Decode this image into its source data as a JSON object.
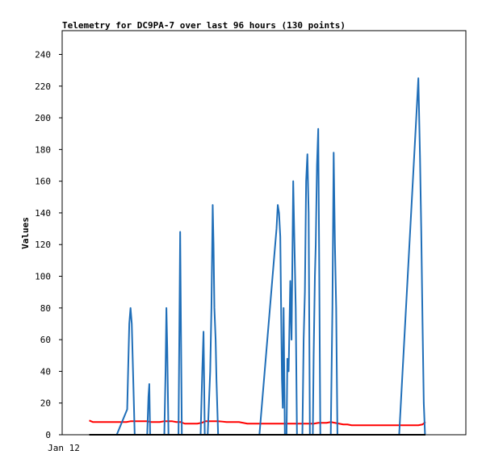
{
  "chart_data": {
    "type": "line",
    "title": "Telemetry for DC9PA-7 over last 96 hours (130 points)",
    "xlabel": "",
    "ylabel": "Values",
    "ylim": [
      0,
      255
    ],
    "yticks": [
      0,
      20,
      40,
      60,
      80,
      100,
      120,
      140,
      160,
      180,
      200,
      220,
      240
    ],
    "x_tick_labels": [
      {
        "label": "Jan 12",
        "x": 0
      }
    ],
    "xlim": [
      0,
      96
    ],
    "grid": false,
    "legend": "none",
    "series": [
      {
        "color": "#ff0000",
        "stroke_width": 2,
        "points": [
          [
            6.1,
            9
          ],
          [
            7,
            8
          ],
          [
            8,
            8
          ],
          [
            9,
            8
          ],
          [
            10,
            8
          ],
          [
            11,
            8
          ],
          [
            12,
            8
          ],
          [
            13,
            8
          ],
          [
            14,
            8
          ],
          [
            15,
            8
          ],
          [
            16,
            8.5
          ],
          [
            17,
            8.5
          ],
          [
            18,
            8.5
          ],
          [
            19,
            8.5
          ],
          [
            20,
            8.5
          ],
          [
            21,
            8
          ],
          [
            22,
            8
          ],
          [
            23,
            8
          ],
          [
            24,
            8.5
          ],
          [
            25,
            8.5
          ],
          [
            26,
            8.5
          ],
          [
            27,
            8
          ],
          [
            28,
            8
          ],
          [
            29,
            7
          ],
          [
            30,
            7
          ],
          [
            31,
            7
          ],
          [
            32,
            7
          ],
          [
            33,
            7.5
          ],
          [
            34,
            8.5
          ],
          [
            35,
            8.5
          ],
          [
            36,
            8.5
          ],
          [
            37,
            8.5
          ],
          [
            38,
            8.3
          ],
          [
            39,
            8
          ],
          [
            40,
            8
          ],
          [
            41,
            8
          ],
          [
            42,
            8
          ],
          [
            43,
            7.5
          ],
          [
            44,
            7
          ],
          [
            45,
            7
          ],
          [
            46,
            7
          ],
          [
            47,
            7
          ],
          [
            48,
            7
          ],
          [
            49,
            7
          ],
          [
            50,
            7
          ],
          [
            51,
            7
          ],
          [
            52,
            7
          ],
          [
            53,
            7
          ],
          [
            54,
            7
          ],
          [
            55,
            7
          ],
          [
            56,
            7
          ],
          [
            57,
            7
          ],
          [
            58,
            7
          ],
          [
            59,
            7
          ],
          [
            60,
            7
          ],
          [
            61,
            7.5
          ],
          [
            62,
            7.5
          ],
          [
            63,
            7.5
          ],
          [
            64,
            8
          ],
          [
            65,
            7.5
          ],
          [
            66,
            7
          ],
          [
            67,
            6.5
          ],
          [
            68,
            6.5
          ],
          [
            69,
            6
          ],
          [
            70,
            6
          ],
          [
            71,
            6
          ],
          [
            72,
            6
          ],
          [
            73,
            6
          ],
          [
            74,
            6
          ],
          [
            75,
            6
          ],
          [
            76,
            6
          ],
          [
            77,
            6
          ],
          [
            78,
            6
          ],
          [
            79,
            6
          ],
          [
            80,
            6
          ],
          [
            81,
            6
          ],
          [
            82,
            6
          ],
          [
            83,
            6
          ],
          [
            84,
            6
          ],
          [
            85,
            6
          ],
          [
            86,
            6.5
          ],
          [
            86.7,
            8
          ]
        ]
      },
      {
        "color": "#1f6eb8",
        "stroke_width": 2,
        "points": [
          [
            12.7,
            0
          ],
          [
            15.2,
            16
          ],
          [
            15.7,
            70
          ],
          [
            16,
            80
          ],
          [
            16.3,
            70
          ],
          [
            16.6,
            40
          ],
          [
            17,
            0
          ],
          [
            20,
            0
          ],
          [
            20.3,
            24
          ],
          [
            20.5,
            32
          ],
          [
            20.7,
            0
          ],
          [
            24.1,
            0
          ],
          [
            24.4,
            40
          ],
          [
            24.6,
            80
          ],
          [
            24.8,
            55
          ],
          [
            25.1,
            0
          ],
          [
            27.5,
            0
          ],
          [
            27.7,
            64
          ],
          [
            27.9,
            128
          ],
          [
            28.1,
            64
          ],
          [
            28.3,
            0
          ],
          [
            32.8,
            0
          ],
          [
            33.2,
            40
          ],
          [
            33.5,
            65
          ],
          [
            33.8,
            0
          ],
          [
            34.5,
            0
          ],
          [
            35.1,
            40
          ],
          [
            35.4,
            80
          ],
          [
            35.7,
            145
          ],
          [
            35.9,
            120
          ],
          [
            36.1,
            80
          ],
          [
            36.4,
            60
          ],
          [
            36.6,
            35
          ],
          [
            37,
            0
          ],
          [
            46.9,
            0
          ],
          [
            51,
            130
          ],
          [
            51.3,
            145
          ],
          [
            51.6,
            140
          ],
          [
            51.9,
            125
          ],
          [
            52.1,
            80
          ],
          [
            52.3,
            35
          ],
          [
            52.5,
            17
          ],
          [
            52.7,
            80
          ],
          [
            53,
            0
          ],
          [
            53.4,
            0
          ],
          [
            53.6,
            48
          ],
          [
            53.9,
            40
          ],
          [
            54.3,
            97
          ],
          [
            54.6,
            60
          ],
          [
            55,
            160
          ],
          [
            55.3,
            120
          ],
          [
            55.6,
            80
          ],
          [
            55.9,
            0
          ],
          [
            57.2,
            0
          ],
          [
            57.5,
            60
          ],
          [
            57.8,
            90
          ],
          [
            58.1,
            160
          ],
          [
            58.4,
            177
          ],
          [
            58.7,
            140
          ],
          [
            59,
            0
          ],
          [
            59.7,
            0
          ],
          [
            59.9,
            50
          ],
          [
            60.2,
            100
          ],
          [
            60.4,
            120
          ],
          [
            60.7,
            170
          ],
          [
            61,
            193
          ],
          [
            61.2,
            120
          ],
          [
            61.5,
            0
          ],
          [
            64,
            0
          ],
          [
            64.4,
            80
          ],
          [
            64.7,
            178
          ],
          [
            65,
            120
          ],
          [
            65.3,
            80
          ],
          [
            65.6,
            0
          ],
          [
            80.4,
            0
          ],
          [
            84.5,
            200
          ],
          [
            85,
            225
          ],
          [
            85.4,
            175
          ],
          [
            85.7,
            128
          ],
          [
            86.0,
            71
          ],
          [
            86.3,
            20
          ],
          [
            86.6,
            0
          ]
        ]
      },
      {
        "color": "#000000",
        "stroke_width": 2,
        "points": [
          [
            6.1,
            0
          ],
          [
            86.7,
            0
          ]
        ]
      }
    ]
  }
}
